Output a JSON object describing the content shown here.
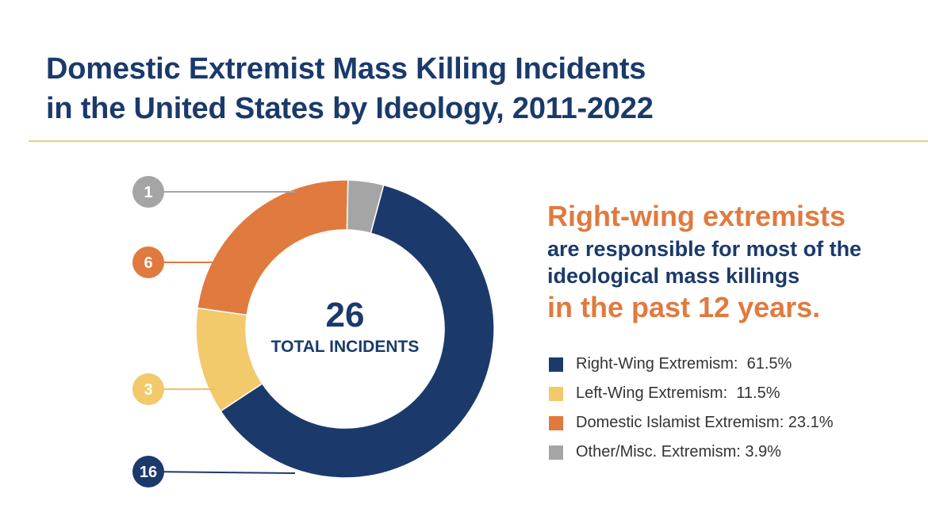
{
  "title": {
    "line1": "Domestic Extremist Mass Killing Incidents",
    "line2": "in the United States by Ideology, 2011-2022"
  },
  "center": {
    "total": "26",
    "label": "TOTAL INCIDENTS"
  },
  "headline": {
    "line1": "Right-wing extremists",
    "line2": "are responsible for most of the",
    "line3": "ideological mass killings",
    "line4": "in the past 12 years."
  },
  "chart_data": {
    "type": "pie",
    "style": "donut",
    "total": 26,
    "series": [
      {
        "name": "Right-Wing Extremism",
        "value": 16,
        "percent_label": "61.5%",
        "color": "#1b3a6b"
      },
      {
        "name": "Left-Wing Extremism",
        "value": 3,
        "percent_label": "11.5%",
        "color": "#f2c96b"
      },
      {
        "name": "Domestic Islamist Extremism",
        "value": 6,
        "percent_label": "23.1%",
        "color": "#e07a3e"
      },
      {
        "name": "Other/Misc. Extremism",
        "value": 1,
        "percent_label": "3.9%",
        "color": "#a5a5a5"
      }
    ],
    "legend_position": "right"
  },
  "legend": {
    "items": [
      {
        "text": "Right-Wing Extremism:  61.5%",
        "color": "#1b3a6b"
      },
      {
        "text": "Left-Wing Extremism:  11.5%",
        "color": "#f2c96b"
      },
      {
        "text": "Domestic Islamist Extremism: 23.1%",
        "color": "#e07a3e"
      },
      {
        "text": "Other/Misc. Extremism: 3.9%",
        "color": "#a5a5a5"
      }
    ]
  },
  "colors": {
    "title": "#1b3a6b",
    "accent": "#e07a3e",
    "rule": "#e6cf8f"
  }
}
